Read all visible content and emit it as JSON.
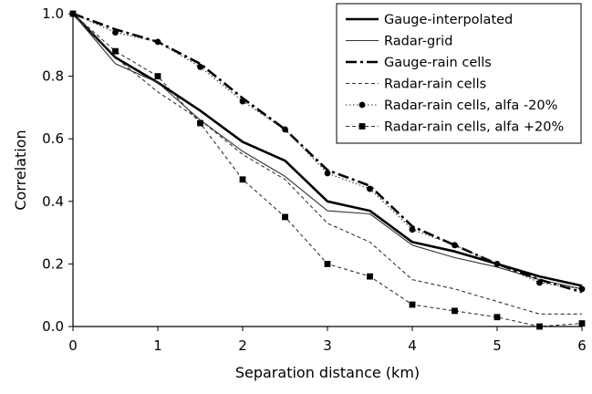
{
  "chart_data": {
    "type": "line",
    "title": "",
    "xlabel": "Separation distance (km)",
    "ylabel": "Correlation",
    "xlim": [
      0,
      6
    ],
    "ylim": [
      0,
      1.0
    ],
    "x_ticks": [
      "0",
      "1",
      "2",
      "3",
      "4",
      "5",
      "6"
    ],
    "y_ticks": [
      "0.0",
      "0.2",
      "0.4",
      "0.6",
      "0.8",
      "1.0"
    ],
    "grid": false,
    "legend_position": "top-right",
    "series": [
      {
        "name": "Gauge-interpolated",
        "style": "solid-thick",
        "marker": "none",
        "x": [
          0,
          0.5,
          1,
          1.5,
          2,
          2.5,
          3,
          3.5,
          4,
          4.5,
          5,
          5.5,
          6
        ],
        "y": [
          1.0,
          0.86,
          0.78,
          0.69,
          0.59,
          0.53,
          0.4,
          0.37,
          0.27,
          0.24,
          0.2,
          0.16,
          0.13
        ]
      },
      {
        "name": "Radar-grid",
        "style": "solid-thin",
        "marker": "none",
        "x": [
          0,
          0.5,
          1,
          1.5,
          2,
          2.5,
          3,
          3.5,
          4,
          4.5,
          5,
          5.5,
          6
        ],
        "y": [
          1.0,
          0.84,
          0.78,
          0.66,
          0.56,
          0.48,
          0.37,
          0.36,
          0.26,
          0.22,
          0.19,
          0.15,
          0.12
        ]
      },
      {
        "name": "Gauge-rain cells",
        "style": "dash-dot-thick",
        "marker": "none",
        "x": [
          0,
          0.5,
          1,
          1.5,
          2,
          2.5,
          3,
          3.5,
          4,
          4.5,
          5,
          5.5,
          6
        ],
        "y": [
          1.0,
          0.95,
          0.91,
          0.84,
          0.73,
          0.63,
          0.5,
          0.45,
          0.32,
          0.26,
          0.2,
          0.15,
          0.11
        ]
      },
      {
        "name": "Radar-rain cells",
        "style": "dashed-thin",
        "marker": "none",
        "x": [
          0,
          0.5,
          1,
          1.5,
          2,
          2.5,
          3,
          3.5,
          4,
          4.5,
          5,
          5.5,
          6
        ],
        "y": [
          1.0,
          0.86,
          0.75,
          0.66,
          0.55,
          0.47,
          0.33,
          0.27,
          0.15,
          0.12,
          0.08,
          0.04,
          0.04
        ]
      },
      {
        "name": "Radar-rain cells, alfa -20%",
        "style": "dotted-thin",
        "marker": "circle",
        "x": [
          0,
          0.5,
          1,
          1.5,
          2,
          2.5,
          3,
          3.5,
          4,
          4.5,
          5,
          5.5,
          6
        ],
        "y": [
          1.0,
          0.94,
          0.91,
          0.83,
          0.72,
          0.63,
          0.49,
          0.44,
          0.31,
          0.26,
          0.2,
          0.14,
          0.12
        ]
      },
      {
        "name": "Radar-rain cells, alfa +20%",
        "style": "dashed-thin",
        "marker": "square",
        "x": [
          0,
          0.5,
          1,
          1.5,
          2,
          2.5,
          3,
          3.5,
          4,
          4.5,
          5,
          5.5,
          6
        ],
        "y": [
          1.0,
          0.88,
          0.8,
          0.65,
          0.47,
          0.35,
          0.2,
          0.16,
          0.07,
          0.05,
          0.03,
          0.0,
          0.01
        ]
      }
    ]
  }
}
